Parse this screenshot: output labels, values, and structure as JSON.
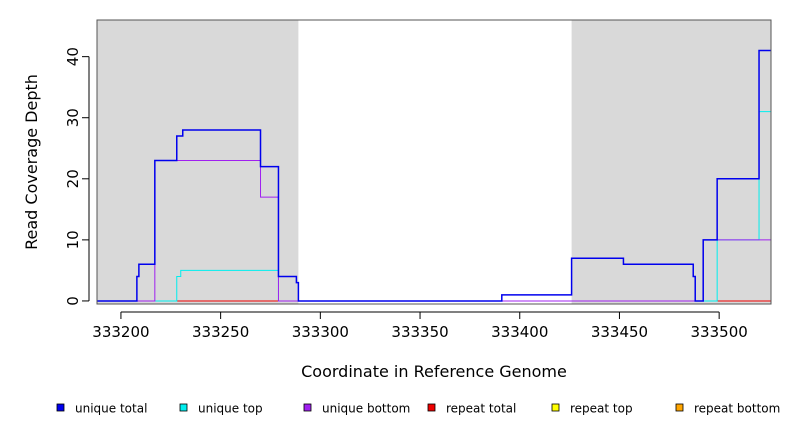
{
  "chart_data": {
    "type": "line",
    "title": "",
    "xlabel": "Coordinate in Reference Genome",
    "ylabel": "Read Coverage Depth",
    "xlim": [
      333188,
      333526
    ],
    "ylim": [
      -0.5,
      46
    ],
    "x_ticks": [
      333200,
      333250,
      333300,
      333350,
      333400,
      333450,
      333500
    ],
    "y_ticks": [
      0,
      10,
      20,
      30,
      40
    ],
    "shaded_regions": [
      [
        333188,
        333289
      ],
      [
        333426,
        333526
      ]
    ],
    "shade_color": "#d9d9d9",
    "grid": false,
    "legend_position": "bottom",
    "series": [
      {
        "name": "unique total",
        "color": "#0000ee",
        "points": [
          [
            333188,
            0
          ],
          [
            333208,
            0
          ],
          [
            333208,
            4
          ],
          [
            333209,
            4
          ],
          [
            333209,
            6
          ],
          [
            333217,
            6
          ],
          [
            333217,
            23
          ],
          [
            333228,
            23
          ],
          [
            333228,
            27
          ],
          [
            333231,
            27
          ],
          [
            333231,
            28
          ],
          [
            333270,
            28
          ],
          [
            333270,
            22
          ],
          [
            333279,
            22
          ],
          [
            333279,
            4
          ],
          [
            333288,
            4
          ],
          [
            333288,
            3
          ],
          [
            333289,
            3
          ],
          [
            333289,
            0
          ],
          [
            333391,
            0
          ],
          [
            333391,
            1
          ],
          [
            333426,
            1
          ],
          [
            333426,
            7
          ],
          [
            333452,
            7
          ],
          [
            333452,
            6
          ],
          [
            333487,
            6
          ],
          [
            333487,
            4
          ],
          [
            333488,
            4
          ],
          [
            333488,
            0
          ],
          [
            333492,
            0
          ],
          [
            333492,
            10
          ],
          [
            333499,
            10
          ],
          [
            333499,
            20
          ],
          [
            333520,
            20
          ],
          [
            333520,
            41
          ],
          [
            333526,
            41
          ]
        ]
      },
      {
        "name": "unique top",
        "color": "#00eeee",
        "points": [
          [
            333188,
            0
          ],
          [
            333228,
            0
          ],
          [
            333228,
            4
          ],
          [
            333230,
            4
          ],
          [
            333230,
            5
          ],
          [
            333279,
            5
          ],
          [
            333279,
            0
          ],
          [
            333499,
            0
          ],
          [
            333499,
            10
          ],
          [
            333520,
            10
          ],
          [
            333520,
            31
          ],
          [
            333526,
            31
          ]
        ]
      },
      {
        "name": "unique bottom",
        "color": "#a020f0",
        "points": [
          [
            333188,
            0
          ],
          [
            333217,
            0
          ],
          [
            333217,
            23
          ],
          [
            333270,
            23
          ],
          [
            333270,
            17
          ],
          [
            333279,
            17
          ],
          [
            333279,
            0
          ],
          [
            333492,
            0
          ],
          [
            333492,
            10
          ],
          [
            333526,
            10
          ]
        ]
      },
      {
        "name": "repeat total",
        "color": "#ee0000",
        "points": [
          [
            333188,
            0
          ],
          [
            333526,
            0
          ]
        ]
      },
      {
        "name": "repeat top",
        "color": "#ffff00",
        "points": [
          [
            333188,
            0
          ],
          [
            333526,
            0
          ]
        ]
      },
      {
        "name": "repeat bottom",
        "color": "#ffa500",
        "points": [
          [
            333188,
            0
          ],
          [
            333526,
            0
          ]
        ]
      }
    ]
  }
}
